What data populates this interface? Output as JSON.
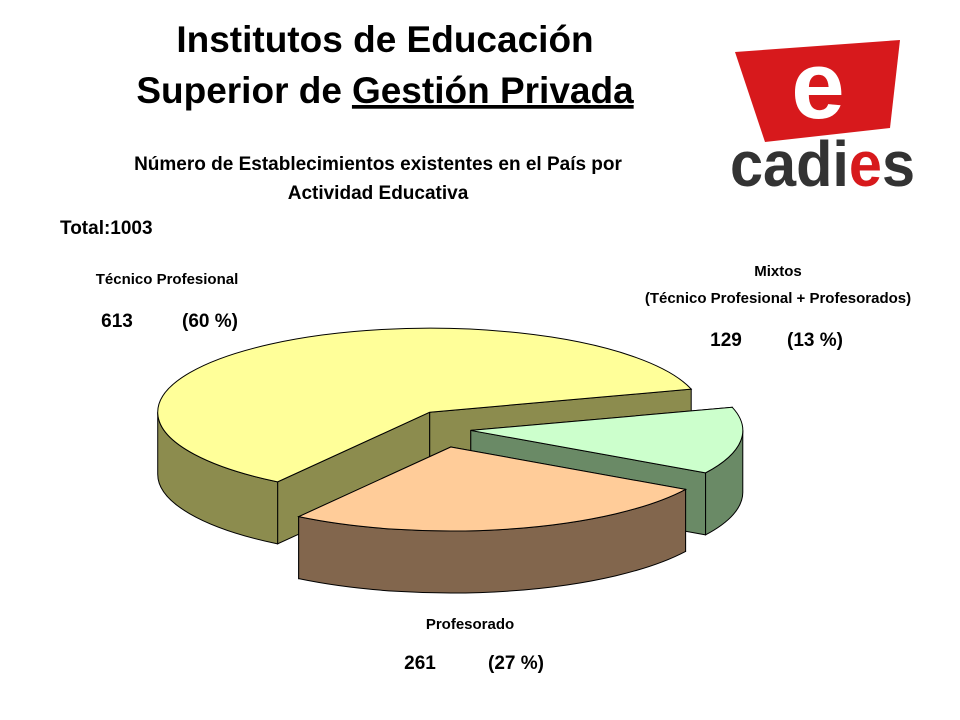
{
  "title_line1": "Institutos de Educación",
  "title_line2": "Superior de",
  "title_line2_underlined": "Gestión Privada",
  "logo": {
    "mark": "e",
    "word_start": "cadi",
    "word_red": "e",
    "word_end": "s"
  },
  "chart_data": {
    "type": "pie3d",
    "subtitle": [
      "Número de Establecimientos existentes en el País por",
      "Actividad Educativa"
    ],
    "total_label": "Total:1003",
    "categories": [
      [
        "Técnico Profesional"
      ],
      [
        "Mixtos",
        "(Técnico Profesional + Profesorados)"
      ],
      [
        "Profesorado"
      ]
    ],
    "values": [
      613,
      129,
      261
    ],
    "percent_labels": [
      "(60 %)",
      "(13 %)",
      "(27 %)"
    ],
    "colors": [
      "#ffff99",
      "#ccffcc",
      "#ffcc99"
    ],
    "side_colors": [
      "#8c8c4e",
      "#6a8a66",
      "#82664d"
    ]
  }
}
